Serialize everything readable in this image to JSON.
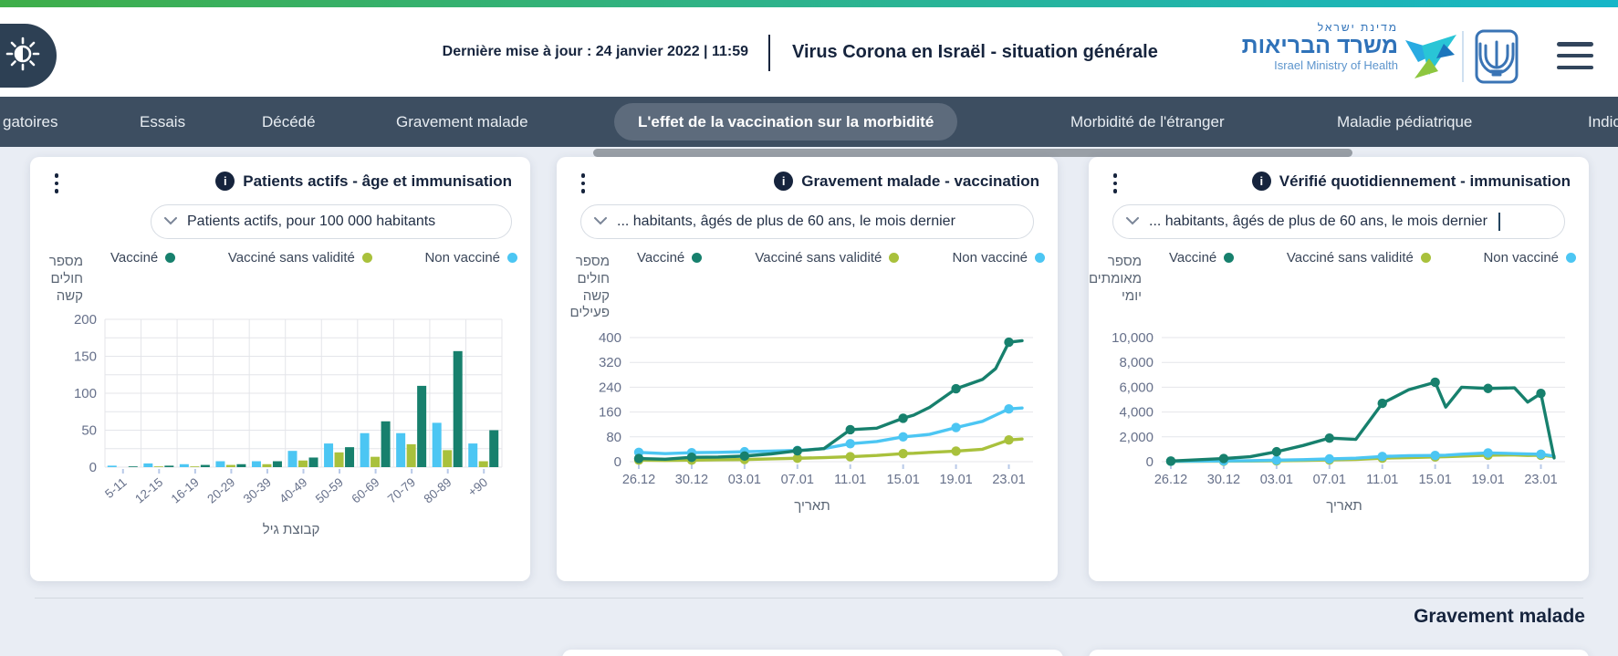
{
  "header": {
    "last_update": "Dernière mise à jour : 24 janvier 2022 | 11:59",
    "title": "Virus Corona en Israël - situation générale",
    "logo": {
      "hebrew_small": "מדינת ישראל",
      "hebrew_large": "משרד הבריאות",
      "english": "Israel Ministry of Health"
    }
  },
  "nav": {
    "tabs": [
      {
        "label": "gatoires"
      },
      {
        "label": "Essais"
      },
      {
        "label": "Décédé"
      },
      {
        "label": "Gravement malade"
      },
      {
        "label": "L'effet de la vaccination sur la morbidité",
        "active": true
      },
      {
        "label": "Morbidité de l'étranger"
      },
      {
        "label": "Maladie pédiatrique"
      },
      {
        "label": "Indic"
      }
    ]
  },
  "icons": {
    "info_glyph": "i"
  },
  "colors": {
    "vaccinated": "#17806d",
    "vaccinated_expired": "#a9c13c",
    "not_vaccinated": "#4cc6f3",
    "accent_navy": "#16243d"
  },
  "cards": [
    {
      "title": "Patients actifs - âge et immunisation",
      "dropdown_value": "Patients actifs, pour 100 000 habitants",
      "legend": [
        {
          "label": "Vacciné",
          "color": "#17806d"
        },
        {
          "label": "Vacciné sans validité",
          "color": "#a9c13c"
        },
        {
          "label": "Non vacciné",
          "color": "#4cc6f3"
        }
      ]
    },
    {
      "title": "Gravement malade - vaccination",
      "dropdown_value": "... habitants, âgés de plus de 60 ans, le mois dernier",
      "legend": [
        {
          "label": "Vacciné",
          "color": "#17806d"
        },
        {
          "label": "Vacciné sans validité",
          "color": "#a9c13c"
        },
        {
          "label": "Non vacciné",
          "color": "#4cc6f3"
        }
      ]
    },
    {
      "title": "Vérifié quotidiennement - immunisation",
      "dropdown_value": "... habitants, âgés de plus de 60 ans, le mois dernier",
      "legend": [
        {
          "label": "Vacciné",
          "color": "#17806d"
        },
        {
          "label": "Vacciné sans validité",
          "color": "#a9c13c"
        },
        {
          "label": "Non vacciné",
          "color": "#4cc6f3"
        }
      ]
    }
  ],
  "chart_data": [
    {
      "type": "bar",
      "title": "Patients actifs - âge et immunisation",
      "categories": [
        "5-11",
        "12-15",
        "16-19",
        "20-29",
        "30-39",
        "40-49",
        "50-59",
        "60-69",
        "70-79",
        "80-89",
        "+90"
      ],
      "series": [
        {
          "name": "Non vacciné",
          "color": "#4cc6f3",
          "values": [
            2,
            5,
            4,
            8,
            8,
            22,
            32,
            46,
            46,
            60,
            32
          ]
        },
        {
          "name": "Vacciné sans validité",
          "color": "#a9c13c",
          "values": [
            0,
            1,
            1,
            3,
            4,
            9,
            20,
            14,
            31,
            23,
            8
          ]
        },
        {
          "name": "Vacciné",
          "color": "#17806d",
          "values": [
            1,
            2,
            3,
            4,
            8,
            13,
            27,
            62,
            110,
            157,
            50
          ]
        }
      ],
      "ylim": [
        0,
        200
      ],
      "yticks": [
        0,
        50,
        100,
        150,
        200
      ],
      "grid_minor_step": 25,
      "grid": "both",
      "ylabel_lines": [
        "מספר",
        "חולים",
        "קשה"
      ],
      "xlabel": "קבוצת גיל",
      "legend_position": "top"
    },
    {
      "type": "line",
      "title": "Gravement malade - vaccination",
      "x_days": [
        0,
        2,
        4,
        6,
        8,
        10,
        12,
        14,
        16,
        18,
        20,
        20.8,
        22,
        24,
        26,
        27,
        28,
        29
      ],
      "x_ticks": [
        {
          "day": 0,
          "label": "26.12"
        },
        {
          "day": 4,
          "label": "30.12"
        },
        {
          "day": 8,
          "label": "03.01"
        },
        {
          "day": 12,
          "label": "07.01"
        },
        {
          "day": 16,
          "label": "11.01"
        },
        {
          "day": 20,
          "label": "15.01"
        },
        {
          "day": 24,
          "label": "19.01"
        },
        {
          "day": 28,
          "label": "23.01"
        }
      ],
      "xlim": [
        0,
        29
      ],
      "series": [
        {
          "name": "Vacciné sans validité",
          "color": "#a9c13c",
          "values": [
            5,
            4,
            5,
            6,
            7,
            9,
            11,
            13,
            16,
            20,
            26,
            27,
            30,
            34,
            40,
            55,
            70,
            73
          ]
        },
        {
          "name": "Non vacciné",
          "color": "#4cc6f3",
          "values": [
            30,
            26,
            29,
            30,
            32,
            34,
            36,
            42,
            58,
            65,
            80,
            83,
            88,
            110,
            130,
            150,
            170,
            173
          ]
        },
        {
          "name": "Vacciné",
          "color": "#17806d",
          "values": [
            10,
            8,
            14,
            15,
            18,
            25,
            35,
            42,
            103,
            108,
            140,
            150,
            175,
            235,
            265,
            300,
            385,
            390
          ]
        }
      ],
      "marker_days": [
        0,
        4,
        8,
        12,
        16,
        20,
        24,
        28
      ],
      "ylim": [
        0,
        400
      ],
      "yticks": [
        0,
        80,
        160,
        240,
        320,
        400
      ],
      "grid": "horizontal",
      "ylabel_lines": [
        "מספר",
        "חולים",
        "קשה",
        "פעילים"
      ],
      "xlabel": "תאריך",
      "legend_position": "top"
    },
    {
      "type": "line",
      "title": "Vérifié quotidiennement - immunisation",
      "x_days": [
        0,
        2,
        4,
        6,
        8,
        10,
        12,
        14,
        16,
        18,
        20,
        20.8,
        22,
        24,
        26,
        27,
        28,
        29
      ],
      "x_ticks": [
        {
          "day": 0,
          "label": "26.12"
        },
        {
          "day": 4,
          "label": "30.12"
        },
        {
          "day": 8,
          "label": "03.01"
        },
        {
          "day": 12,
          "label": "07.01"
        },
        {
          "day": 16,
          "label": "11.01"
        },
        {
          "day": 20,
          "label": "15.01"
        },
        {
          "day": 24,
          "label": "19.01"
        },
        {
          "day": 28,
          "label": "23.01"
        }
      ],
      "xlim": [
        0,
        29
      ],
      "series": [
        {
          "name": "Vacciné sans validité",
          "color": "#a9c13c",
          "values": [
            20,
            30,
            40,
            50,
            70,
            100,
            140,
            180,
            280,
            330,
            380,
            400,
            450,
            520,
            540,
            500,
            520,
            400
          ]
        },
        {
          "name": "Non vacciné",
          "color": "#4cc6f3",
          "values": [
            30,
            40,
            60,
            80,
            120,
            160,
            220,
            280,
            420,
            480,
            500,
            520,
            600,
            700,
            650,
            620,
            600,
            450
          ]
        },
        {
          "name": "Vacciné",
          "color": "#17806d",
          "values": [
            50,
            150,
            250,
            400,
            800,
            1300,
            1900,
            1800,
            4700,
            5800,
            6400,
            4400,
            6000,
            5900,
            5950,
            4800,
            5500,
            300
          ]
        }
      ],
      "marker_days": [
        0,
        4,
        8,
        12,
        16,
        20,
        24,
        28
      ],
      "ylim": [
        0,
        10000
      ],
      "yticks": [
        0,
        2000,
        4000,
        6000,
        8000,
        10000
      ],
      "ytick_format": "thousands",
      "grid": "horizontal",
      "ylabel_lines": [
        "מספר",
        "מאומתים",
        "יומי"
      ],
      "xlabel": "תאריך",
      "legend_position": "top"
    }
  ],
  "section": {
    "heading": "Gravement malade"
  }
}
